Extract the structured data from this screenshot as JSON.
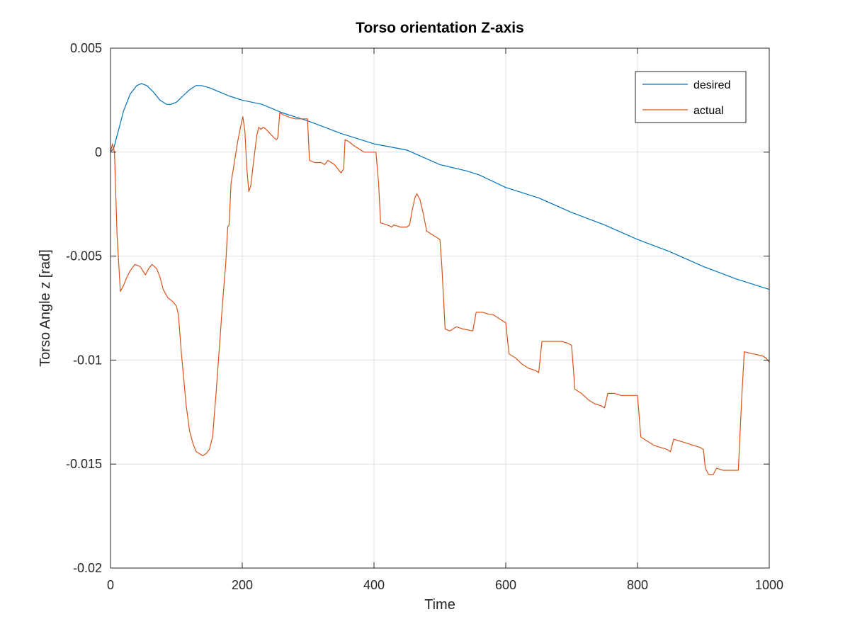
{
  "chart_data": {
    "type": "line",
    "title": "Torso orientation Z-axis",
    "xlabel": "Time",
    "ylabel": "Torso Angle z [rad]",
    "xlim": [
      0,
      1000
    ],
    "ylim": [
      -0.02,
      0.005
    ],
    "x_ticks": [
      0,
      200,
      400,
      600,
      800,
      1000
    ],
    "x_tick_labels": [
      "0",
      "200",
      "400",
      "600",
      "800",
      "1000"
    ],
    "y_ticks": [
      -0.02,
      -0.015,
      -0.01,
      -0.005,
      0,
      0.005
    ],
    "y_tick_labels": [
      "-0.02",
      "-0.015",
      "-0.01",
      "-0.005",
      "0",
      "0.005"
    ],
    "grid": true,
    "legend_position": "top-right",
    "series": [
      {
        "name": "desired",
        "color": "#0072bd",
        "points": [
          [
            0,
            0
          ],
          [
            5,
            0.0002
          ],
          [
            10,
            0.0008
          ],
          [
            20,
            0.002
          ],
          [
            30,
            0.0028
          ],
          [
            40,
            0.0032
          ],
          [
            47,
            0.0033
          ],
          [
            55,
            0.0032
          ],
          [
            65,
            0.0029
          ],
          [
            75,
            0.0025
          ],
          [
            85,
            0.0023
          ],
          [
            92,
            0.0023
          ],
          [
            100,
            0.0024
          ],
          [
            110,
            0.0027
          ],
          [
            120,
            0.003
          ],
          [
            130,
            0.0032
          ],
          [
            138,
            0.0032
          ],
          [
            150,
            0.0031
          ],
          [
            165,
            0.0029
          ],
          [
            180,
            0.0027
          ],
          [
            200,
            0.0025
          ],
          [
            230,
            0.0023
          ],
          [
            260,
            0.0019
          ],
          [
            300,
            0.0015
          ],
          [
            350,
            0.0009
          ],
          [
            400,
            0.0004
          ],
          [
            450,
            0.0001
          ],
          [
            500,
            -0.0006
          ],
          [
            540,
            -0.0009
          ],
          [
            560,
            -0.0011
          ],
          [
            600,
            -0.0017
          ],
          [
            650,
            -0.0022
          ],
          [
            700,
            -0.0029
          ],
          [
            750,
            -0.0035
          ],
          [
            800,
            -0.0042
          ],
          [
            850,
            -0.0048
          ],
          [
            900,
            -0.0055
          ],
          [
            950,
            -0.0061
          ],
          [
            1000,
            -0.0066
          ]
        ]
      },
      {
        "name": "actual",
        "color": "#d95319",
        "points": [
          [
            0,
            0
          ],
          [
            3,
            0.0004
          ],
          [
            6,
            0
          ],
          [
            10,
            -0.004
          ],
          [
            15,
            -0.0067
          ],
          [
            20,
            -0.0064
          ],
          [
            25,
            -0.006
          ],
          [
            30,
            -0.0057
          ],
          [
            37,
            -0.0054
          ],
          [
            45,
            -0.0055
          ],
          [
            53,
            -0.0059
          ],
          [
            58,
            -0.0056
          ],
          [
            63,
            -0.0054
          ],
          [
            70,
            -0.0056
          ],
          [
            75,
            -0.006
          ],
          [
            80,
            -0.0066
          ],
          [
            87,
            -0.007
          ],
          [
            95,
            -0.0072
          ],
          [
            100,
            -0.0074
          ],
          [
            103,
            -0.0078
          ],
          [
            108,
            -0.0098
          ],
          [
            115,
            -0.0122
          ],
          [
            120,
            -0.0134
          ],
          [
            125,
            -0.014
          ],
          [
            130,
            -0.0144
          ],
          [
            135,
            -0.0145
          ],
          [
            140,
            -0.0146
          ],
          [
            145,
            -0.0145
          ],
          [
            150,
            -0.0143
          ],
          [
            155,
            -0.0137
          ],
          [
            160,
            -0.0117
          ],
          [
            165,
            -0.0095
          ],
          [
            170,
            -0.0073
          ],
          [
            175,
            -0.0053
          ],
          [
            178,
            -0.0036
          ],
          [
            180,
            -0.0035
          ],
          [
            183,
            -0.0015
          ],
          [
            188,
            -0.0005
          ],
          [
            193,
            0.0005
          ],
          [
            198,
            0.0013
          ],
          [
            201,
            0.0017
          ],
          [
            204,
            0.001
          ],
          [
            207,
            -0.0008
          ],
          [
            210,
            -0.0019
          ],
          [
            213,
            -0.0016
          ],
          [
            217,
            -0.0005
          ],
          [
            222,
            0.0008
          ],
          [
            225,
            0.0012
          ],
          [
            228,
            0.0011
          ],
          [
            232,
            0.0012
          ],
          [
            236,
            0.0011
          ],
          [
            242,
            0.0009
          ],
          [
            248,
            0.0007
          ],
          [
            252,
            0.0006
          ],
          [
            254,
            0.0007
          ],
          [
            257,
            0.0019
          ],
          [
            262,
            0.0018
          ],
          [
            270,
            0.0017
          ],
          [
            280,
            0.0016
          ],
          [
            290,
            0.0016
          ],
          [
            299,
            0.0016
          ],
          [
            302,
            -0.0004
          ],
          [
            310,
            -0.0005
          ],
          [
            320,
            -0.0005
          ],
          [
            325,
            -0.0006
          ],
          [
            330,
            -0.0004
          ],
          [
            340,
            -0.0006
          ],
          [
            350,
            -0.001
          ],
          [
            354,
            -0.0008
          ],
          [
            356,
            0.0006
          ],
          [
            362,
            0.0005
          ],
          [
            370,
            0.0003
          ],
          [
            380,
            0.0001
          ],
          [
            385,
            0
          ],
          [
            395,
            0
          ],
          [
            403,
            0
          ],
          [
            407,
            -0.0015
          ],
          [
            410,
            -0.0034
          ],
          [
            420,
            -0.0035
          ],
          [
            427,
            -0.0036
          ],
          [
            430,
            -0.0035
          ],
          [
            440,
            -0.0036
          ],
          [
            450,
            -0.0036
          ],
          [
            454,
            -0.0035
          ],
          [
            458,
            -0.0028
          ],
          [
            462,
            -0.0022
          ],
          [
            465,
            -0.002
          ],
          [
            470,
            -0.0023
          ],
          [
            475,
            -0.003
          ],
          [
            480,
            -0.0038
          ],
          [
            490,
            -0.004
          ],
          [
            500,
            -0.0042
          ],
          [
            503,
            -0.0055
          ],
          [
            508,
            -0.0085
          ],
          [
            515,
            -0.0086
          ],
          [
            520,
            -0.0085
          ],
          [
            525,
            -0.0084
          ],
          [
            535,
            -0.0085
          ],
          [
            550,
            -0.0086
          ],
          [
            555,
            -0.0077
          ],
          [
            565,
            -0.0077
          ],
          [
            575,
            -0.0078
          ],
          [
            580,
            -0.0078
          ],
          [
            590,
            -0.008
          ],
          [
            600,
            -0.0082
          ],
          [
            605,
            -0.0097
          ],
          [
            615,
            -0.0099
          ],
          [
            625,
            -0.0102
          ],
          [
            635,
            -0.0104
          ],
          [
            645,
            -0.0105
          ],
          [
            650,
            -0.0106
          ],
          [
            655,
            -0.0091
          ],
          [
            665,
            -0.0091
          ],
          [
            675,
            -0.0091
          ],
          [
            685,
            -0.0091
          ],
          [
            695,
            -0.0092
          ],
          [
            700,
            -0.0093
          ],
          [
            705,
            -0.0114
          ],
          [
            715,
            -0.0116
          ],
          [
            725,
            -0.0119
          ],
          [
            735,
            -0.0121
          ],
          [
            745,
            -0.0122
          ],
          [
            750,
            -0.0123
          ],
          [
            755,
            -0.0116
          ],
          [
            765,
            -0.0116
          ],
          [
            775,
            -0.0117
          ],
          [
            785,
            -0.0117
          ],
          [
            795,
            -0.0117
          ],
          [
            800,
            -0.0117
          ],
          [
            805,
            -0.0137
          ],
          [
            815,
            -0.0139
          ],
          [
            825,
            -0.0141
          ],
          [
            835,
            -0.0142
          ],
          [
            845,
            -0.0143
          ],
          [
            850,
            -0.0144
          ],
          [
            855,
            -0.0138
          ],
          [
            865,
            -0.0139
          ],
          [
            875,
            -0.014
          ],
          [
            885,
            -0.0141
          ],
          [
            895,
            -0.0142
          ],
          [
            900,
            -0.0143
          ],
          [
            903,
            -0.0152
          ],
          [
            908,
            -0.0155
          ],
          [
            915,
            -0.0155
          ],
          [
            920,
            -0.0152
          ],
          [
            930,
            -0.0153
          ],
          [
            940,
            -0.0153
          ],
          [
            950,
            -0.0153
          ],
          [
            953,
            -0.0153
          ],
          [
            958,
            -0.012
          ],
          [
            962,
            -0.0096
          ],
          [
            975,
            -0.0097
          ],
          [
            990,
            -0.0098
          ],
          [
            995,
            -0.0099
          ],
          [
            1000,
            -0.0101
          ]
        ]
      }
    ]
  }
}
